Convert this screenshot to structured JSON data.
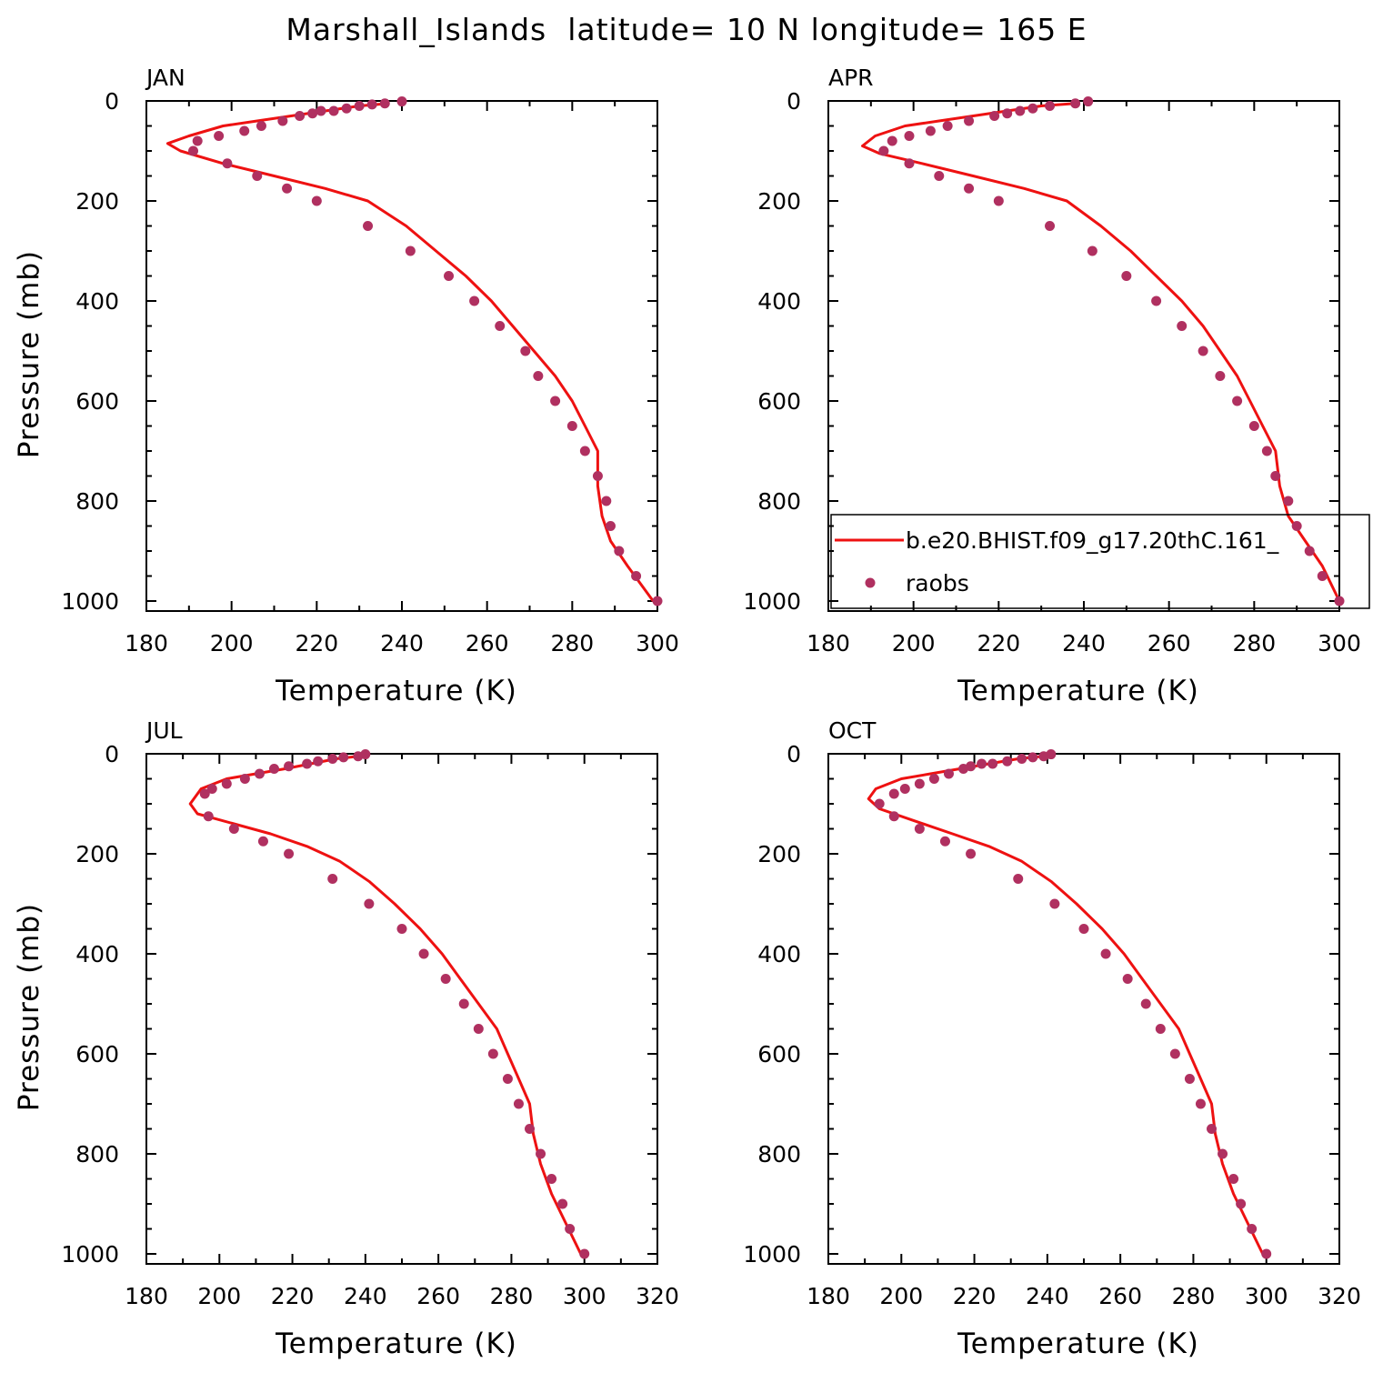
{
  "title": "Marshall_Islands  latitude= 10 N longitude= 165 E",
  "colors": {
    "model_line": "#ee1111",
    "raobs_dots": "#b03060",
    "axes": "#000000"
  },
  "legend": {
    "model_label": "b.e20.BHIST.f09_g17.20thC.161_",
    "obs_label": "raobs"
  },
  "chart_data": [
    {
      "type": "line",
      "panel": "JAN",
      "xlabel": "Temperature (K)",
      "ylabel": "Pressure (mb)",
      "xlim": [
        180,
        300
      ],
      "ylim": [
        1020,
        0
      ],
      "xticks": [
        180,
        200,
        220,
        240,
        260,
        280,
        300
      ],
      "yticks": [
        0,
        200,
        400,
        600,
        800,
        1000
      ],
      "series": [
        {
          "name": "b.e20.BHIST.f09_g17.20thC.161_",
          "kind": "line",
          "x": [
            237,
            230,
            222,
            214,
            206,
            198,
            190,
            185,
            188,
            198,
            210,
            222,
            232,
            241,
            248,
            255,
            261,
            266,
            271,
            276,
            280,
            283,
            286,
            286,
            287,
            289,
            293,
            299
          ],
          "y": [
            5,
            10,
            20,
            30,
            40,
            50,
            70,
            85,
            100,
            125,
            150,
            175,
            200,
            250,
            300,
            350,
            400,
            450,
            500,
            550,
            600,
            650,
            700,
            770,
            830,
            880,
            930,
            1000
          ]
        },
        {
          "name": "raobs",
          "kind": "scatter",
          "x": [
            240,
            236,
            233,
            230,
            227,
            224,
            221,
            219,
            216,
            212,
            207,
            203,
            197,
            192,
            191,
            199,
            206,
            213,
            220,
            232,
            242,
            251,
            257,
            263,
            269,
            272,
            276,
            280,
            283,
            286,
            288,
            289,
            291,
            295,
            300
          ],
          "y": [
            1,
            5,
            7,
            10,
            15,
            20,
            20,
            25,
            30,
            40,
            50,
            60,
            70,
            80,
            100,
            125,
            150,
            175,
            200,
            250,
            300,
            350,
            400,
            450,
            500,
            550,
            600,
            650,
            700,
            750,
            800,
            850,
            900,
            950,
            1000
          ]
        }
      ]
    },
    {
      "type": "line",
      "panel": "APR",
      "xlabel": "Temperature (K)",
      "ylabel": "",
      "xlim": [
        180,
        300
      ],
      "ylim": [
        1020,
        0
      ],
      "xticks": [
        180,
        200,
        220,
        240,
        260,
        280,
        300
      ],
      "yticks": [
        0,
        200,
        400,
        600,
        800,
        1000
      ],
      "series": [
        {
          "name": "b.e20.BHIST.f09_g17.20thC.161_",
          "kind": "line",
          "x": [
            238,
            230,
            222,
            214,
            206,
            198,
            191,
            188,
            192,
            202,
            214,
            226,
            236,
            244,
            251,
            257,
            263,
            268,
            272,
            276,
            279,
            282,
            285,
            286,
            288,
            292,
            296,
            300
          ],
          "y": [
            5,
            10,
            20,
            30,
            40,
            50,
            70,
            90,
            105,
            125,
            150,
            175,
            200,
            250,
            300,
            350,
            400,
            450,
            500,
            550,
            600,
            650,
            700,
            770,
            830,
            880,
            930,
            1000
          ]
        },
        {
          "name": "raobs",
          "kind": "scatter",
          "x": [
            241,
            238,
            232,
            228,
            225,
            222,
            219,
            213,
            208,
            204,
            199,
            195,
            193,
            199,
            206,
            213,
            220,
            232,
            242,
            250,
            257,
            263,
            268,
            272,
            276,
            280,
            283,
            285,
            288,
            290,
            293,
            296,
            300
          ],
          "y": [
            1,
            5,
            10,
            15,
            20,
            25,
            30,
            40,
            50,
            60,
            70,
            80,
            100,
            125,
            150,
            175,
            200,
            250,
            300,
            350,
            400,
            450,
            500,
            550,
            600,
            650,
            700,
            750,
            800,
            850,
            900,
            950,
            1000
          ]
        }
      ]
    },
    {
      "type": "line",
      "panel": "JUL",
      "xlabel": "Temperature (K)",
      "ylabel": "Pressure (mb)",
      "xlim": [
        180,
        320
      ],
      "ylim": [
        1020,
        0
      ],
      "xticks": [
        180,
        200,
        220,
        240,
        260,
        280,
        300,
        320
      ],
      "yticks": [
        0,
        200,
        400,
        600,
        800,
        1000
      ],
      "series": [
        {
          "name": "b.e20.BHIST.f09_g17.20thC.161_",
          "kind": "line",
          "x": [
            238,
            232,
            225,
            218,
            210,
            202,
            195,
            192,
            194,
            204,
            214,
            224,
            233,
            241,
            248,
            255,
            261,
            266,
            271,
            276,
            279,
            282,
            285,
            286,
            288,
            291,
            295,
            299
          ],
          "y": [
            5,
            10,
            20,
            30,
            40,
            50,
            70,
            100,
            120,
            140,
            160,
            185,
            215,
            255,
            300,
            350,
            400,
            450,
            500,
            550,
            600,
            650,
            700,
            760,
            820,
            880,
            940,
            1000
          ]
        },
        {
          "name": "raobs",
          "kind": "scatter",
          "x": [
            240,
            238,
            234,
            231,
            227,
            224,
            219,
            215,
            211,
            207,
            202,
            198,
            196,
            197,
            204,
            212,
            219,
            231,
            241,
            250,
            256,
            262,
            267,
            271,
            275,
            279,
            282,
            285,
            288,
            291,
            294,
            296,
            300
          ],
          "y": [
            1,
            5,
            7,
            10,
            15,
            20,
            25,
            30,
            40,
            50,
            60,
            70,
            80,
            125,
            150,
            175,
            200,
            250,
            300,
            350,
            400,
            450,
            500,
            550,
            600,
            650,
            700,
            750,
            800,
            850,
            900,
            950,
            1000
          ]
        }
      ]
    },
    {
      "type": "line",
      "panel": "OCT",
      "xlabel": "Temperature (K)",
      "ylabel": "",
      "xlim": [
        180,
        320
      ],
      "ylim": [
        1020,
        0
      ],
      "xticks": [
        180,
        200,
        220,
        240,
        260,
        280,
        300,
        320
      ],
      "yticks": [
        0,
        200,
        400,
        600,
        800,
        1000
      ],
      "series": [
        {
          "name": "b.e20.BHIST.f09_g17.20thC.161_",
          "kind": "line",
          "x": [
            239,
            232,
            224,
            216,
            208,
            200,
            193,
            191,
            194,
            204,
            214,
            224,
            233,
            241,
            248,
            255,
            261,
            266,
            271,
            276,
            279,
            282,
            285,
            286,
            288,
            291,
            295,
            299
          ],
          "y": [
            5,
            10,
            20,
            30,
            40,
            50,
            70,
            90,
            110,
            135,
            160,
            185,
            215,
            255,
            300,
            350,
            400,
            450,
            500,
            550,
            600,
            650,
            700,
            760,
            820,
            880,
            940,
            1000
          ]
        },
        {
          "name": "raobs",
          "kind": "scatter",
          "x": [
            241,
            239,
            236,
            233,
            229,
            225,
            222,
            219,
            217,
            213,
            209,
            205,
            201,
            198,
            194,
            198,
            205,
            212,
            219,
            232,
            242,
            250,
            256,
            262,
            267,
            271,
            275,
            279,
            282,
            285,
            288,
            291,
            293,
            296,
            300
          ],
          "y": [
            1,
            5,
            7,
            10,
            15,
            20,
            20,
            25,
            30,
            40,
            50,
            60,
            70,
            80,
            100,
            125,
            150,
            175,
            200,
            250,
            300,
            350,
            400,
            450,
            500,
            550,
            600,
            650,
            700,
            750,
            800,
            850,
            900,
            950,
            1000
          ]
        }
      ]
    }
  ]
}
